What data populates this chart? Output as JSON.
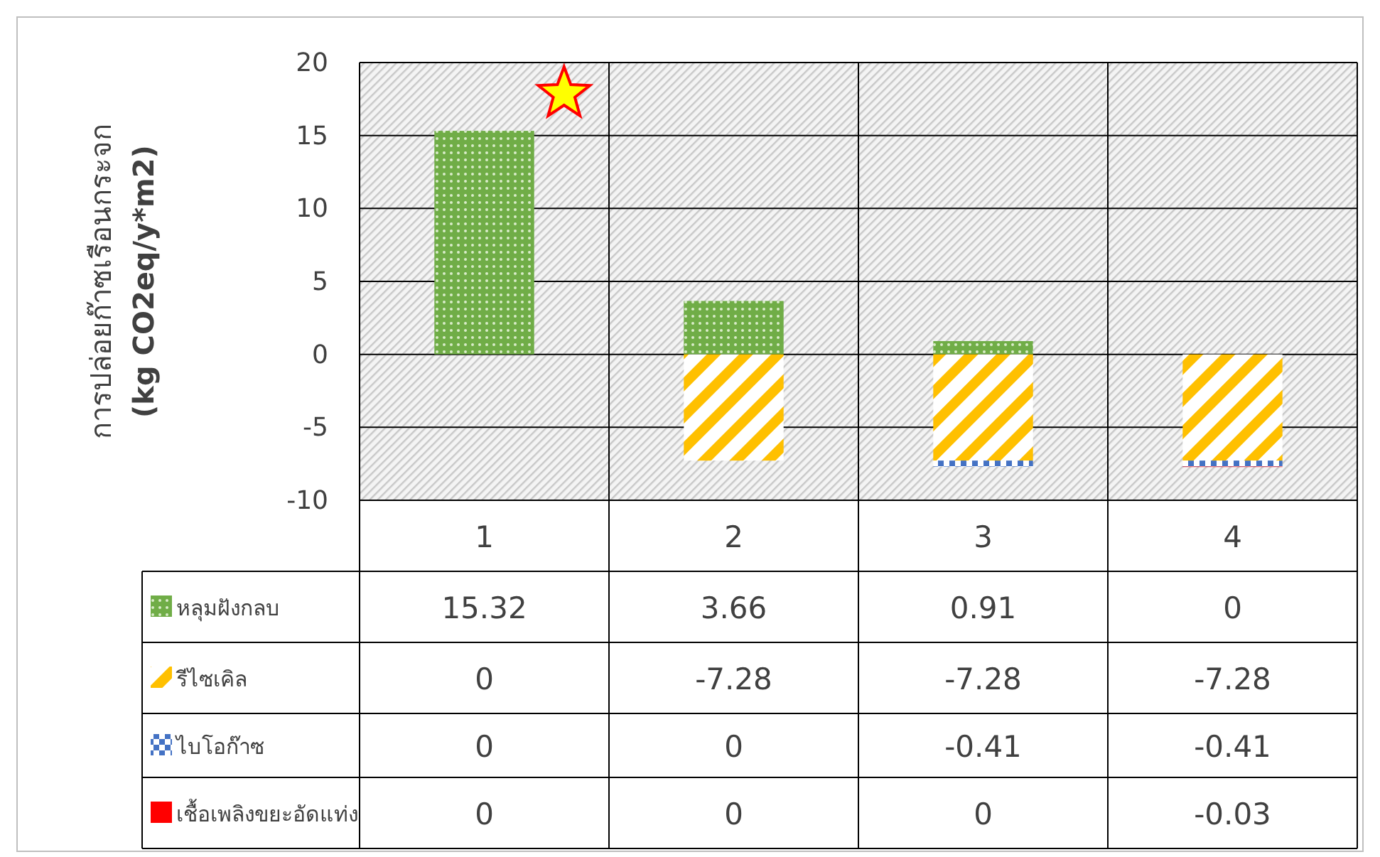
{
  "chart_data": {
    "type": "bar",
    "stacked": true,
    "ylabel": "การปล่อยก๊าซเรือนกระจก\n(kg CO2eq/y*m2)",
    "categories": [
      "1",
      "2",
      "3",
      "4"
    ],
    "ylim": [
      -10,
      20
    ],
    "yticks": [
      -10,
      -5,
      0,
      5,
      10,
      15,
      20
    ],
    "grid": "y",
    "legend": "bottom",
    "data_labels": true,
    "series": [
      {
        "name": "หลุมฝังกลบ",
        "color": "#70ad47",
        "values": [
          15.32,
          3.66,
          0.91,
          0
        ]
      },
      {
        "name": "รีไซเคิล",
        "color": "#ffc000",
        "values": [
          0,
          -7.28,
          -7.28,
          -7.28
        ]
      },
      {
        "name": "ไบโอก๊าซ",
        "color": "#4472c4",
        "values": [
          0,
          0,
          -0.41,
          -0.41
        ]
      },
      {
        "name": "เชื้อเพลิงขยะอัดแท่ง",
        "color": "#ff0000",
        "values": [
          0,
          0,
          0,
          -0.03
        ]
      }
    ]
  }
}
